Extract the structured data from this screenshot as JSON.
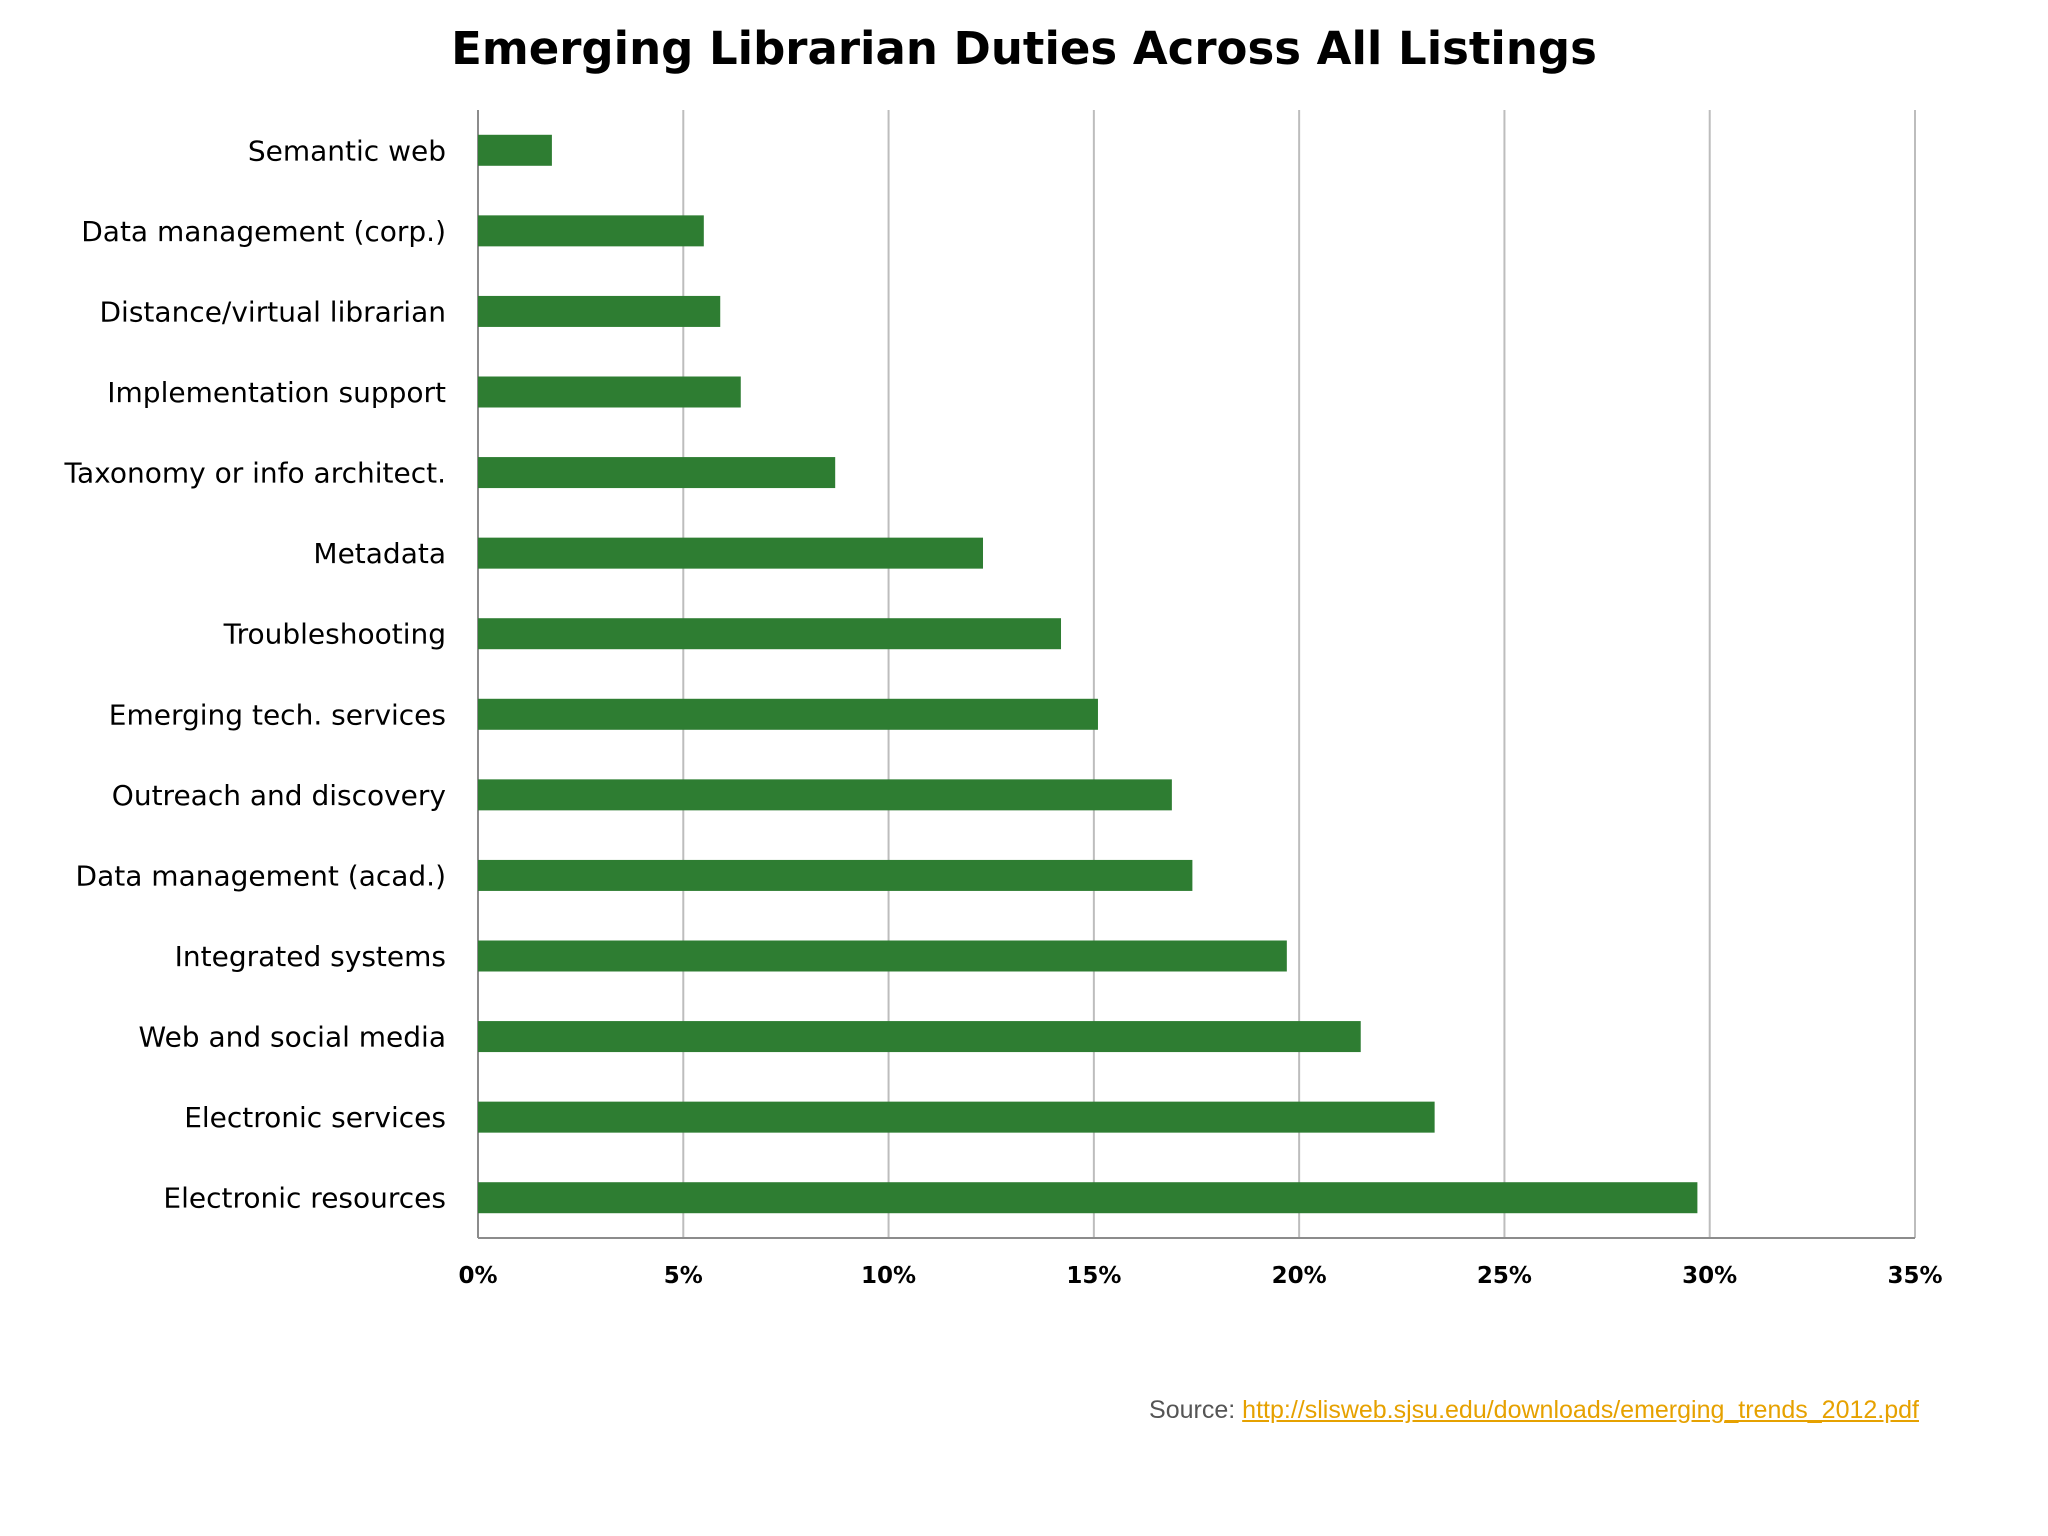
{
  "chart_data": {
    "type": "bar",
    "orientation": "horizontal",
    "title": "Emerging Librarian Duties Across All Listings",
    "categories": [
      "Semantic web",
      "Data management (corp.)",
      "Distance/virtual librarian",
      "Implementation support",
      "Taxonomy or info architect.",
      "Metadata",
      "Troubleshooting",
      "Emerging tech. services",
      "Outreach and discovery",
      "Data management (acad.)",
      "Integrated systems",
      "Web and social media",
      "Electronic services",
      "Electronic resources"
    ],
    "values": [
      1.8,
      5.5,
      5.9,
      6.4,
      8.7,
      12.3,
      14.2,
      15.1,
      16.9,
      17.4,
      19.7,
      21.5,
      23.3,
      29.7
    ],
    "xlim": [
      0,
      35
    ],
    "xticks": [
      0,
      5,
      10,
      15,
      20,
      25,
      30,
      35
    ],
    "tick_format": "%",
    "xlabel": "",
    "ylabel": "",
    "grid": "vertical",
    "legend": "none",
    "bar_color": "#2e7d32",
    "grid_color": "#bdbdbd"
  },
  "source": {
    "label": "Source:",
    "link_text": "http://slisweb.sjsu.edu/downloads/emerging_trends_2012.pdf",
    "link_color": "#e6a100"
  }
}
